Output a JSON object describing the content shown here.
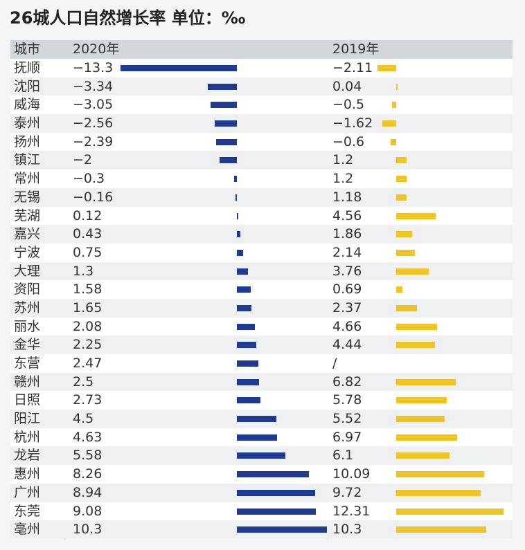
{
  "title": "26城人口自然增长率 单位：‰",
  "chart_data": {
    "type": "bar",
    "title": "26城人口自然增长率 单位：‰",
    "columns": [
      "城市",
      "2020年",
      "2019年"
    ],
    "categories": [
      "抚顺",
      "沈阳",
      "威海",
      "泰州",
      "扬州",
      "镇江",
      "常州",
      "无锡",
      "芜湖",
      "嘉兴",
      "宁波",
      "大理",
      "资阳",
      "苏州",
      "丽水",
      "金华",
      "东营",
      "赣州",
      "日照",
      "阳江",
      "杭州",
      "龙岩",
      "惠州",
      "广州",
      "东莞",
      "亳州"
    ],
    "series": [
      {
        "name": "2020年",
        "color": "#1e3a93",
        "values": [
          -13.3,
          -3.34,
          -3.05,
          -2.56,
          -2.39,
          -2,
          -0.3,
          -0.16,
          0.12,
          0.43,
          0.75,
          1.3,
          1.58,
          1.65,
          2.08,
          2.25,
          2.47,
          2.5,
          2.73,
          4.5,
          4.63,
          5.58,
          8.26,
          8.94,
          9.08,
          10.3
        ],
        "labels": [
          "−13.3",
          "−3.34",
          "−3.05",
          "−2.56",
          "−2.39",
          "−2",
          "−0.3",
          "−0.16",
          "0.12",
          "0.43",
          "0.75",
          "1.3",
          "1.58",
          "1.65",
          "2.08",
          "2.25",
          "2.47",
          "2.5",
          "2.73",
          "4.5",
          "4.63",
          "5.58",
          "8.26",
          "8.94",
          "9.08",
          "10.3"
        ]
      },
      {
        "name": "2019年",
        "color": "#efc425",
        "values": [
          -2.11,
          0.04,
          -0.5,
          -1.62,
          -0.6,
          1.2,
          1.2,
          1.18,
          4.56,
          1.86,
          2.14,
          3.76,
          0.69,
          2.37,
          4.66,
          4.44,
          null,
          6.82,
          5.78,
          5.52,
          6.97,
          6.1,
          10.09,
          9.72,
          12.31,
          10.3
        ],
        "labels": [
          "−2.11",
          "0.04",
          "−0.5",
          "−1.62",
          "−0.6",
          "1.2",
          "1.2",
          "1.18",
          "4.56",
          "1.86",
          "2.14",
          "3.76",
          "0.69",
          "2.37",
          "4.66",
          "4.44",
          "/",
          "6.82",
          "5.78",
          "5.52",
          "6.97",
          "6.1",
          "10.09",
          "9.72",
          "12.31",
          "10.3"
        ]
      }
    ]
  }
}
